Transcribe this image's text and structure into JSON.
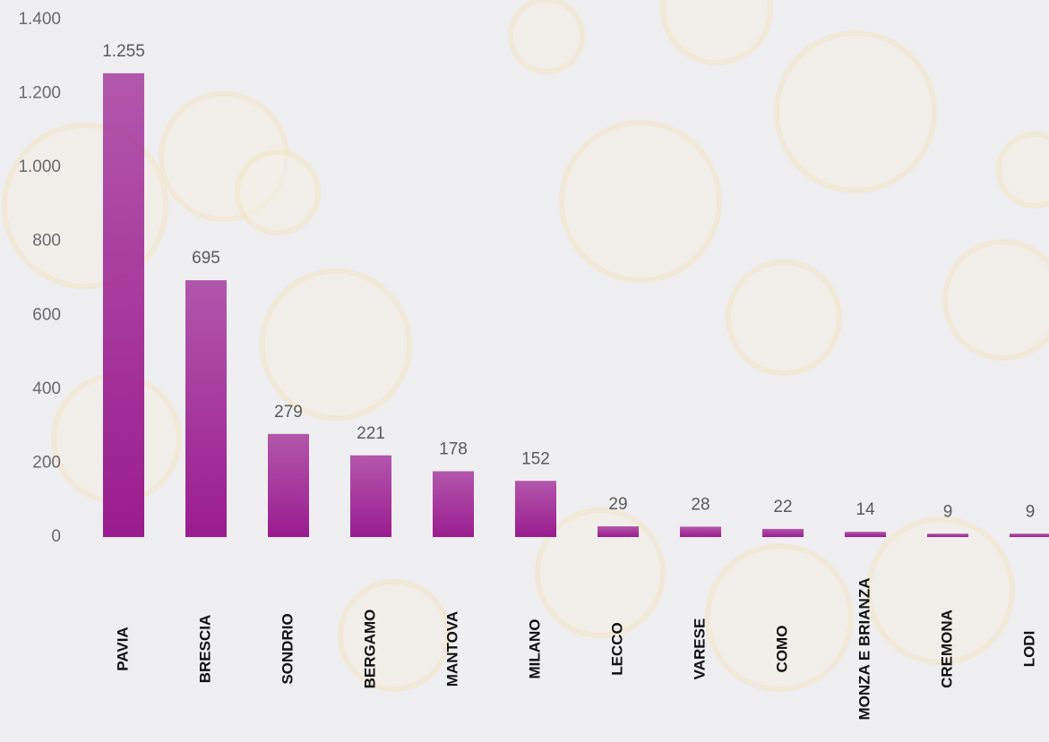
{
  "chart_data": {
    "type": "bar",
    "categories": [
      "PAVIA",
      "BRESCIA",
      "SONDRIO",
      "BERGAMO",
      "MANTOVA",
      "MILANO",
      "LECCO",
      "VARESE",
      "COMO",
      "MONZA E BRIANZA",
      "CREMONA",
      "LODI"
    ],
    "values": [
      1255,
      695,
      279,
      221,
      178,
      152,
      29,
      28,
      22,
      14,
      9,
      9
    ],
    "value_labels": [
      "1.255",
      "695",
      "279",
      "221",
      "178",
      "152",
      "29",
      "28",
      "22",
      "14",
      "9",
      "9"
    ],
    "color": "#9a1c90",
    "ylim": [
      0,
      1400
    ],
    "yticks": [
      0,
      200,
      400,
      600,
      800,
      {
        "value": 1000,
        "label": "1.000"
      },
      {
        "value": 1200,
        "label": "1.200"
      },
      {
        "value": 1400,
        "label": "1.400"
      }
    ]
  }
}
